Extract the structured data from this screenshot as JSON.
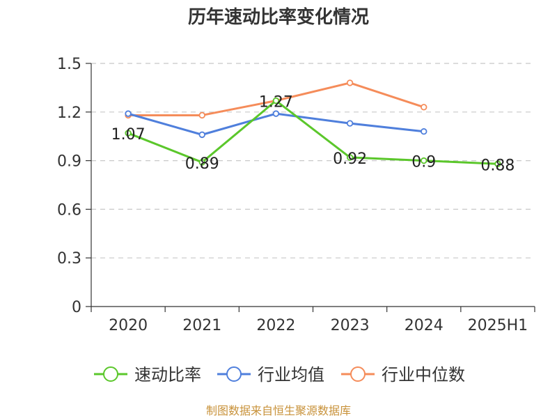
{
  "chart_data": {
    "type": "line",
    "title": "历年速动比率变化情况",
    "categories": [
      "2020",
      "2021",
      "2022",
      "2023",
      "2024",
      "2025H1"
    ],
    "ylim": [
      0,
      1.5
    ],
    "yticks": [
      "0",
      "0.3",
      "0.6",
      "0.9",
      "1.2",
      "1.5"
    ],
    "ytick_values": [
      0,
      0.3,
      0.6,
      0.9,
      1.2,
      1.5
    ],
    "grid": true,
    "legend_position": "bottom",
    "series": [
      {
        "name": "速动比率",
        "color": "#5bc72b",
        "values": [
          1.07,
          0.89,
          1.27,
          0.92,
          0.9,
          0.88
        ],
        "labels": [
          "1.07",
          "0.89",
          "1.27",
          "0.92",
          "0.9",
          "0.88"
        ]
      },
      {
        "name": "行业均值",
        "color": "#4f7fdc",
        "values": [
          1.19,
          1.06,
          1.19,
          1.13,
          1.08,
          null
        ]
      },
      {
        "name": "行业中位数",
        "color": "#f58c5a",
        "values": [
          1.18,
          1.18,
          1.27,
          1.38,
          1.23,
          null
        ]
      }
    ],
    "source": "制图数据来自恒生聚源数据库"
  }
}
